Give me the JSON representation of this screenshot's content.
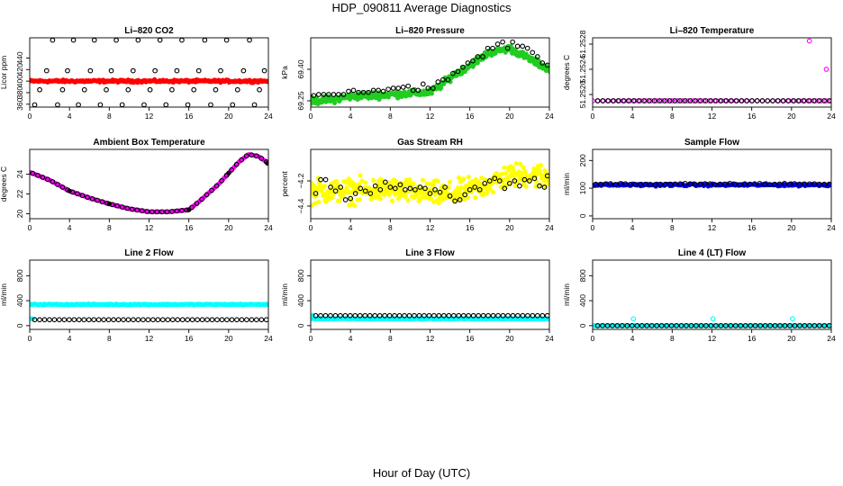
{
  "page": {
    "title": "HDP_090811  Average Diagnostics",
    "xlabel": "Hour of Day (UTC)"
  },
  "colors": {
    "red": "#ff0000",
    "green": "#22cc22",
    "magenta": "#ff00ff",
    "yellow": "#ffff00",
    "blue": "#0000ff",
    "cyan": "#00ffff",
    "black": "#000000"
  },
  "chart_data": [
    {
      "type": "scatter",
      "title": "Li–820 CO2",
      "ylabel": "Licor ppm",
      "xlim": [
        0,
        24
      ],
      "ylim": [
        355,
        475
      ],
      "xticks": [
        0,
        4,
        8,
        12,
        16,
        20,
        24
      ],
      "xtick_labels": [
        "0",
        "4",
        "8",
        "12",
        "16",
        "20",
        "24"
      ],
      "yticks": [
        360,
        380,
        400,
        420,
        440
      ],
      "ytick_labels": [
        "360",
        "380",
        "400",
        "420",
        "440"
      ],
      "series": [
        {
          "name": "raw",
          "color": "red",
          "marker": "filled",
          "x_range": [
            0,
            24
          ],
          "y_const": 400,
          "y_noise": 1.5,
          "n": 280
        },
        {
          "name": "average",
          "color": "black",
          "marker": "open",
          "x": [
            0.5,
            1.0,
            1.7,
            2.3,
            2.8,
            3.3,
            3.8,
            4.4,
            4.9,
            5.5,
            6.1,
            6.5,
            7.1,
            7.7,
            8.2,
            8.7,
            9.3,
            9.9,
            10.4,
            10.9,
            11.5,
            12.1,
            12.6,
            13.1,
            13.7,
            14.3,
            14.8,
            15.3,
            15.9,
            16.5,
            17.0,
            17.6,
            18.2,
            18.7,
            19.2,
            19.8,
            20.4,
            20.9,
            21.5,
            22.1,
            22.6,
            23.1,
            23.6
          ],
          "y": [
            359,
            385,
            418,
            471,
            359,
            385,
            418,
            471,
            359,
            385,
            418,
            471,
            359,
            385,
            418,
            471,
            359,
            385,
            418,
            471,
            359,
            385,
            418,
            471,
            359,
            385,
            418,
            471,
            359,
            385,
            418,
            471,
            359,
            385,
            418,
            471,
            359,
            385,
            418,
            471,
            359,
            385,
            418
          ]
        }
      ]
    },
    {
      "type": "scatter",
      "title": "Li–820 Pressure",
      "ylabel": "kPa",
      "xlim": [
        0,
        24
      ],
      "ylim": [
        69.22,
        69.55
      ],
      "xticks": [
        0,
        4,
        8,
        12,
        16,
        20,
        24
      ],
      "xtick_labels": [
        "0",
        "4",
        "8",
        "12",
        "16",
        "20",
        "24"
      ],
      "yticks": [
        69.25,
        69.4
      ],
      "ytick_labels": [
        "69.25",
        "69.40"
      ],
      "series": [
        {
          "name": "raw",
          "color": "green",
          "marker": "filled",
          "x_range": [
            0,
            24
          ],
          "y_noise": 0.012,
          "n": 360,
          "x_knots": [
            0,
            2,
            4,
            6,
            8,
            10,
            12,
            13,
            14,
            15,
            16,
            18,
            20,
            22,
            24
          ],
          "y_knots": [
            69.25,
            69.255,
            69.27,
            69.275,
            69.28,
            69.285,
            69.29,
            69.32,
            69.36,
            69.39,
            69.42,
            69.48,
            69.5,
            69.45,
            69.4
          ]
        },
        {
          "name": "average",
          "color": "black",
          "marker": "open",
          "x": [
            0.3,
            0.8,
            1.3,
            1.8,
            2.3,
            2.8,
            3.3,
            3.8,
            4.3,
            4.8,
            5.3,
            5.8,
            6.3,
            6.8,
            7.3,
            7.8,
            8.3,
            8.8,
            9.3,
            9.8,
            10.3,
            10.8,
            11.3,
            11.8,
            12.3,
            12.8,
            13.3,
            13.8,
            14.3,
            14.8,
            15.3,
            15.8,
            16.3,
            16.8,
            17.3,
            17.8,
            18.3,
            18.8,
            19.3,
            19.8,
            20.3,
            20.8,
            21.3,
            21.8,
            22.3,
            22.8,
            23.3,
            23.8
          ],
          "y": [
            69.275,
            69.28,
            69.28,
            69.28,
            69.28,
            69.28,
            69.28,
            69.295,
            69.3,
            69.29,
            69.29,
            69.29,
            69.3,
            69.3,
            69.295,
            69.305,
            69.31,
            69.31,
            69.315,
            69.32,
            69.3,
            69.3,
            69.33,
            69.31,
            69.31,
            69.34,
            69.35,
            69.35,
            69.38,
            69.39,
            69.41,
            69.43,
            69.44,
            69.46,
            69.46,
            69.5,
            69.5,
            69.52,
            69.53,
            69.5,
            69.53,
            69.51,
            69.51,
            69.5,
            69.48,
            69.46,
            69.43,
            69.42
          ]
        }
      ]
    },
    {
      "type": "scatter",
      "title": "Li–820 Temperature",
      "ylabel": "degrees C",
      "xlim": [
        0,
        24
      ],
      "ylim": [
        51.2518,
        51.2529
      ],
      "xticks": [
        0,
        4,
        8,
        12,
        16,
        20,
        24
      ],
      "xtick_labels": [
        "0",
        "4",
        "8",
        "12",
        "16",
        "20",
        "24"
      ],
      "yticks": [
        51.252,
        51.2524,
        51.2528
      ],
      "ytick_labels": [
        "51.2520",
        "51.2524",
        "51.2528"
      ],
      "series": [
        {
          "name": "raw",
          "color": "magenta",
          "marker": "open",
          "x_range": [
            0,
            24
          ],
          "y_const": 51.2519,
          "n": 46,
          "x_extra": [
            21.8,
            23.5
          ],
          "y_extra": [
            51.25285,
            51.2524
          ]
        },
        {
          "name": "average",
          "color": "black",
          "marker": "open",
          "x_range": [
            0.5,
            23.8
          ],
          "y_const": 51.2519,
          "n": 46
        }
      ]
    },
    {
      "type": "scatter",
      "title": "Ambient Box Temperature",
      "ylabel": "degrees C",
      "xlim": [
        0,
        24
      ],
      "ylim": [
        19.5,
        26.5
      ],
      "xticks": [
        0,
        4,
        8,
        12,
        16,
        20,
        24
      ],
      "xtick_labels": [
        "0",
        "4",
        "8",
        "12",
        "16",
        "20",
        "24"
      ],
      "yticks": [
        20,
        22,
        24
      ],
      "ytick_labels": [
        "20",
        "22",
        "24"
      ],
      "series": [
        {
          "name": "raw",
          "color": "magenta",
          "marker": "filled",
          "x_range": [
            0,
            24
          ],
          "n": 200,
          "x_knots": [
            0,
            2,
            4,
            6,
            8,
            10,
            12,
            14,
            16,
            17,
            18,
            19,
            20,
            21,
            22,
            23,
            24
          ],
          "y_knots": [
            24.2,
            23.4,
            22.3,
            21.6,
            21.0,
            20.5,
            20.2,
            20.2,
            20.4,
            21.2,
            22.1,
            23.0,
            24.1,
            25.2,
            26.0,
            25.8,
            25.1
          ]
        },
        {
          "name": "average",
          "color": "black",
          "marker": "open",
          "x_range": [
            0.3,
            23.8
          ],
          "n": 48,
          "x_knots": [
            0,
            2,
            4,
            6,
            8,
            10,
            12,
            14,
            16,
            17,
            18,
            19,
            20,
            21,
            22,
            23,
            24
          ],
          "y_knots": [
            24.2,
            23.4,
            22.3,
            21.6,
            21.0,
            20.5,
            20.2,
            20.2,
            20.4,
            21.2,
            22.1,
            23.0,
            24.1,
            25.2,
            26.0,
            25.8,
            25.1
          ]
        },
        {
          "name": "highlight",
          "color": "black",
          "marker": "filled",
          "x": [
            4,
            8,
            16,
            20,
            23.9
          ],
          "y": [
            22.3,
            21.0,
            20.4,
            24.1,
            25.1
          ]
        }
      ]
    },
    {
      "type": "scatter",
      "title": "Gas Stream RH",
      "ylabel": "percent",
      "xlim": [
        0,
        24
      ],
      "ylim": [
        -4.5,
        -3.95
      ],
      "xticks": [
        0,
        4,
        8,
        12,
        16,
        20,
        24
      ],
      "xtick_labels": [
        "0",
        "4",
        "8",
        "12",
        "16",
        "20",
        "24"
      ],
      "yticks": [
        -4.4,
        -4.2
      ],
      "ytick_labels": [
        "−4.4",
        "−4.2"
      ],
      "series": [
        {
          "name": "raw",
          "color": "yellow",
          "marker": "filled",
          "x_range": [
            0,
            24
          ],
          "y_noise": 0.07,
          "n": 420,
          "x_knots": [
            0,
            4,
            8,
            12,
            14,
            16,
            18,
            20,
            22,
            24
          ],
          "y_knots": [
            -4.28,
            -4.28,
            -4.27,
            -4.3,
            -4.31,
            -4.27,
            -4.22,
            -4.16,
            -4.15,
            -4.17
          ]
        },
        {
          "name": "average",
          "color": "black",
          "marker": "open",
          "x": [
            0.5,
            1.0,
            1.5,
            2.0,
            2.5,
            3.0,
            3.5,
            4.0,
            4.5,
            5.0,
            5.5,
            6.0,
            6.5,
            7.0,
            7.5,
            8.0,
            8.5,
            9.0,
            9.5,
            10.0,
            10.5,
            11.0,
            11.5,
            12.0,
            12.5,
            13.0,
            13.5,
            14.0,
            14.5,
            15.0,
            15.5,
            16.0,
            16.5,
            17.0,
            17.5,
            18.0,
            18.5,
            19.0,
            19.5,
            20.0,
            20.5,
            21.0,
            21.5,
            22.0,
            22.5,
            23.0,
            23.5,
            23.8
          ],
          "y": [
            -4.3,
            -4.19,
            -4.19,
            -4.25,
            -4.28,
            -4.25,
            -4.35,
            -4.34,
            -4.3,
            -4.26,
            -4.28,
            -4.3,
            -4.24,
            -4.27,
            -4.21,
            -4.25,
            -4.26,
            -4.23,
            -4.27,
            -4.26,
            -4.27,
            -4.25,
            -4.26,
            -4.3,
            -4.27,
            -4.29,
            -4.25,
            -4.32,
            -4.36,
            -4.35,
            -4.31,
            -4.27,
            -4.25,
            -4.27,
            -4.22,
            -4.2,
            -4.18,
            -4.2,
            -4.26,
            -4.22,
            -4.2,
            -4.24,
            -4.19,
            -4.2,
            -4.18,
            -4.24,
            -4.25,
            -4.16
          ]
        }
      ]
    },
    {
      "type": "scatter",
      "title": "Sample Flow",
      "ylabel": "ml/min",
      "xlim": [
        0,
        24
      ],
      "ylim": [
        -10,
        240
      ],
      "xticks": [
        0,
        4,
        8,
        12,
        16,
        20,
        24
      ],
      "xtick_labels": [
        "0",
        "4",
        "8",
        "12",
        "16",
        "20",
        "24"
      ],
      "yticks": [
        0,
        100,
        200
      ],
      "ytick_labels": [
        "0",
        "100",
        "200"
      ],
      "series": [
        {
          "name": "raw",
          "color": "blue",
          "marker": "filled",
          "x_range": [
            0,
            24
          ],
          "y_const": 112,
          "y_noise": 3,
          "n": 220
        },
        {
          "name": "average",
          "color": "black",
          "marker": "open",
          "x_range": [
            0.3,
            23.8
          ],
          "y_const": 115,
          "y_noise": 1.5,
          "n": 48
        }
      ]
    },
    {
      "type": "scatter",
      "title": "Line 2 Flow",
      "ylabel": "ml/min",
      "xlim": [
        0,
        24
      ],
      "ylim": [
        -60,
        1050
      ],
      "xticks": [
        0,
        4,
        8,
        12,
        16,
        20,
        24
      ],
      "xtick_labels": [
        "0",
        "4",
        "8",
        "12",
        "16",
        "20",
        "24"
      ],
      "yticks": [
        0,
        400,
        800
      ],
      "ytick_labels": [
        "0",
        "400",
        "800"
      ],
      "series": [
        {
          "name": "raw",
          "color": "cyan",
          "marker": "filled",
          "x_range": [
            0,
            24
          ],
          "y_const": 340,
          "y_noise": 6,
          "n": 260
        },
        {
          "name": "raw-low",
          "color": "cyan",
          "marker": "filled",
          "x_range": [
            0,
            0.3
          ],
          "y_const": 110,
          "n": 3
        },
        {
          "name": "average",
          "color": "black",
          "marker": "open",
          "x_range": [
            0.5,
            23.8
          ],
          "y_const": 95,
          "n": 48
        }
      ]
    },
    {
      "type": "scatter",
      "title": "Line 3 Flow",
      "ylabel": "ml/min",
      "xlim": [
        0,
        24
      ],
      "ylim": [
        -60,
        1050
      ],
      "xticks": [
        0,
        4,
        8,
        12,
        16,
        20,
        24
      ],
      "xtick_labels": [
        "0",
        "4",
        "8",
        "12",
        "16",
        "20",
        "24"
      ],
      "yticks": [
        0,
        400,
        800
      ],
      "ytick_labels": [
        "0",
        "400",
        "800"
      ],
      "series": [
        {
          "name": "raw",
          "color": "cyan",
          "marker": "filled",
          "x_range": [
            0,
            24
          ],
          "y_const": 110,
          "y_noise": 5,
          "n": 260
        },
        {
          "name": "raw-start",
          "color": "cyan",
          "marker": "filled",
          "x_range": [
            0,
            0.2
          ],
          "y_const": 165,
          "n": 2
        },
        {
          "name": "average",
          "color": "black",
          "marker": "open",
          "x_range": [
            0.5,
            23.8
          ],
          "y_const": 160,
          "n": 48
        }
      ]
    },
    {
      "type": "scatter",
      "title": "Line 4 (LT) Flow",
      "ylabel": "ml/min",
      "xlim": [
        0,
        24
      ],
      "ylim": [
        -60,
        1050
      ],
      "xticks": [
        0,
        4,
        8,
        12,
        16,
        20,
        24
      ],
      "xtick_labels": [
        "0",
        "4",
        "8",
        "12",
        "16",
        "20",
        "24"
      ],
      "yticks": [
        0,
        400,
        800
      ],
      "ytick_labels": [
        "0",
        "400",
        "800"
      ],
      "series": [
        {
          "name": "raw",
          "color": "cyan",
          "marker": "filled",
          "x_range": [
            0,
            24
          ],
          "y_const": 0,
          "n": 120
        },
        {
          "name": "spikes",
          "color": "cyan",
          "marker": "open",
          "x": [
            0,
            4.1,
            12.1,
            20.1
          ],
          "y": [
            0,
            110,
            110,
            110
          ]
        },
        {
          "name": "average",
          "color": "black",
          "marker": "open",
          "x_range": [
            0.5,
            23.8
          ],
          "y_const": 0,
          "n": 48
        }
      ]
    }
  ]
}
